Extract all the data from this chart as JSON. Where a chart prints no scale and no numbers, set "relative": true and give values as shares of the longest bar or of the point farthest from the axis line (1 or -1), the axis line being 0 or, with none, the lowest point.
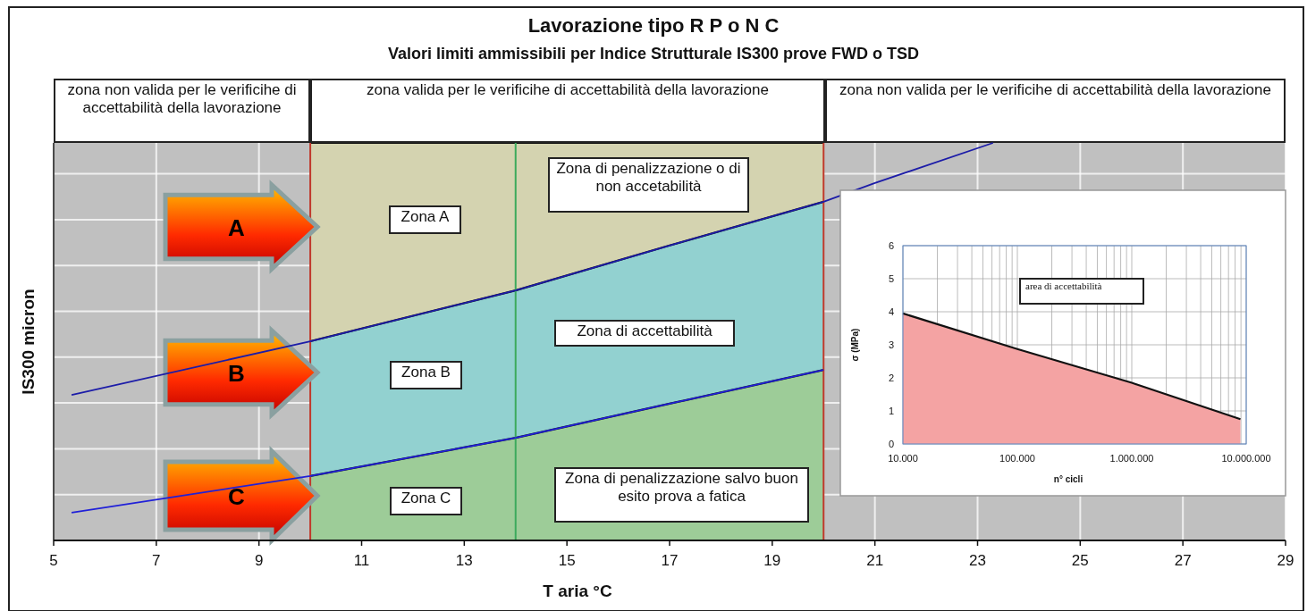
{
  "chart_data": [
    {
      "type": "line",
      "title": "Lavorazione tipo R P o N C",
      "subtitle": "Valori limiti ammissibili per Indice Strutturale IS300 prove FWD o TSD",
      "xlabel": "T aria °C",
      "ylabel": "IS300 micron",
      "relative": true,
      "xlim": [
        5,
        29
      ],
      "xticks": [
        5,
        7,
        9,
        11,
        13,
        15,
        17,
        19,
        21,
        23,
        25,
        27,
        29
      ],
      "grid": true,
      "bands": [
        {
          "axis": "x",
          "from": 5,
          "to": 10,
          "color": "#c0c0c0"
        },
        {
          "axis": "x",
          "from": 20,
          "to": 29,
          "color": "#c0c0c0"
        }
      ],
      "series": [
        {
          "name": "Zona A",
          "type": "area",
          "color": "#d4d3b0",
          "x": [
            10,
            14,
            17,
            20
          ],
          "values": [
            1.0,
            1.0,
            1.0,
            1.0
          ]
        },
        {
          "name": "Zona B",
          "type": "area",
          "color": "#92d1d0",
          "x": [
            10,
            14,
            17,
            20
          ],
          "values": [
            0.501,
            0.629,
            0.742,
            0.852
          ]
        },
        {
          "name": "Zona C",
          "type": "area",
          "color": "#9dcc98",
          "x": [
            10,
            14,
            17,
            20
          ],
          "values": [
            0.162,
            0.258,
            0.344,
            0.429
          ]
        },
        {
          "color": "#1c1ca8",
          "x": [
            5.35,
            10,
            14,
            17,
            20,
            21,
            23.3
          ],
          "values": [
            0.366,
            0.501,
            0.629,
            0.742,
            0.852,
            0.899,
            1.0
          ]
        },
        {
          "color": "#2020d8",
          "x": [
            5.35,
            10,
            14,
            17,
            20
          ],
          "values": [
            0.07,
            0.162,
            0.258,
            0.344,
            0.429
          ]
        }
      ],
      "ref_lines": [
        {
          "axis": "x",
          "value": 10,
          "color": "#c0392b"
        },
        {
          "axis": "x",
          "value": 14,
          "color": "#3daa5c"
        },
        {
          "axis": "x",
          "value": 20,
          "color": "#c0392b"
        }
      ],
      "annotations": [
        "zona non valida per le verificihe di accettabilità della lavorazione",
        "zona valida per le verificihe di accettabilità della lavorazione",
        "zona non valida per le verificihe di accettabilità della lavorazione",
        "Zona di penalizzazione o di non accetabilità",
        "Zona di accettabilità",
        "Zona di penalizzazione salvo buon esito prova a fatica",
        "A",
        "B",
        "C"
      ]
    },
    {
      "type": "area",
      "xlabel": "n° cicli",
      "ylabel": "σ (MPa)",
      "log": "x",
      "grid": true,
      "xlim": [
        10000,
        10000000
      ],
      "xticks": [
        {
          "value": 10000,
          "label": "10.000"
        },
        {
          "value": 100000,
          "label": "100.000"
        },
        {
          "value": 1000000,
          "label": "1.000.000"
        },
        {
          "value": 10000000,
          "label": "10.000.000"
        }
      ],
      "ylim": [
        0,
        6
      ],
      "yticks": [
        0,
        1,
        2,
        3,
        4,
        5,
        6
      ],
      "series": [
        {
          "color": "#f4a3a3",
          "x": [
            10000,
            100000,
            1000000,
            8900000
          ],
          "values": [
            3.95,
            2.87,
            1.85,
            0.75
          ]
        }
      ],
      "annotations": [
        "area di accettabilità"
      ]
    }
  ]
}
